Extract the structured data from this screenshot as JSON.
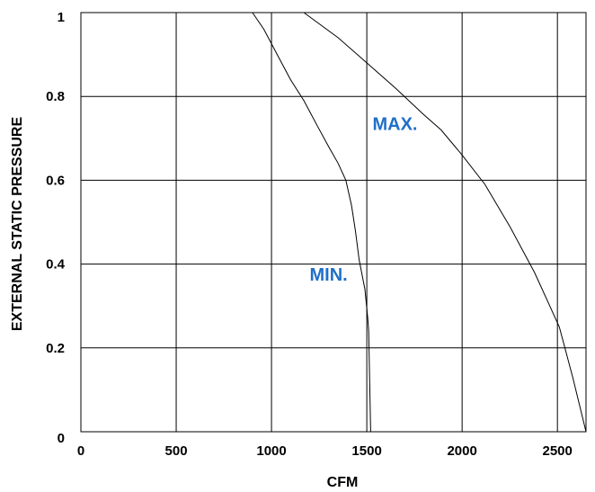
{
  "chart_data": {
    "type": "line",
    "title": "",
    "xlabel": "CFM",
    "ylabel": "EXTERNAL STATIC PRESSURE",
    "xlim": [
      0,
      2650
    ],
    "ylim": [
      0,
      1
    ],
    "x_ticks": [
      0,
      500,
      1000,
      1500,
      2000,
      2500
    ],
    "x_tick_labels": [
      "0",
      "500",
      "1000",
      "1500",
      "2000",
      "2500"
    ],
    "y_ticks": [
      0,
      0.2,
      0.4,
      0.6,
      0.8,
      1
    ],
    "y_tick_labels": [
      "0",
      "0.2",
      "0.4",
      "0.6",
      "0.8",
      "1"
    ],
    "grid": true,
    "label_color": "#1f6fc8",
    "series": [
      {
        "name": "MIN.",
        "points": [
          [
            900,
            1.0
          ],
          [
            960,
            0.96
          ],
          [
            1030,
            0.9
          ],
          [
            1100,
            0.84
          ],
          [
            1170,
            0.79
          ],
          [
            1240,
            0.73
          ],
          [
            1300,
            0.68
          ],
          [
            1350,
            0.64
          ],
          [
            1390,
            0.6
          ],
          [
            1420,
            0.54
          ],
          [
            1440,
            0.48
          ],
          [
            1460,
            0.41
          ],
          [
            1490,
            0.34
          ],
          [
            1505,
            0.27
          ],
          [
            1510,
            0.24
          ],
          [
            1520,
            0.0
          ]
        ]
      },
      {
        "name": "MAX.",
        "points": [
          [
            1170,
            1.0
          ],
          [
            1350,
            0.94
          ],
          [
            1500,
            0.88
          ],
          [
            1650,
            0.82
          ],
          [
            1790,
            0.76
          ],
          [
            1890,
            0.72
          ],
          [
            2000,
            0.66
          ],
          [
            2120,
            0.59
          ],
          [
            2250,
            0.49
          ],
          [
            2380,
            0.38
          ],
          [
            2460,
            0.3
          ],
          [
            2510,
            0.25
          ],
          [
            2580,
            0.13
          ],
          [
            2650,
            0.0
          ]
        ]
      }
    ],
    "annotations": [
      {
        "text": "MAX.",
        "x": 1530,
        "y": 0.72
      },
      {
        "text": "MIN.",
        "x": 1200,
        "y": 0.36
      }
    ]
  }
}
